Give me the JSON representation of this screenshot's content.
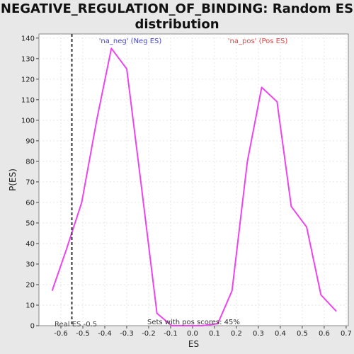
{
  "chart_data": {
    "type": "line",
    "title": "NEGATIVE_REGULATION_OF_BINDING: Random ES distribution",
    "xlabel": "ES",
    "ylabel": "P(ES)",
    "xlim": [
      -0.7,
      0.71
    ],
    "ylim": [
      0,
      142
    ],
    "x_ticks": [
      -0.6,
      -0.5,
      -0.4,
      -0.3,
      -0.2,
      -0.1,
      0.0,
      0.1,
      0.2,
      0.3,
      0.4,
      0.5,
      0.6,
      0.7
    ],
    "x_tick_labels": [
      "-0.6",
      "-0.5",
      "-0.4",
      "-0.3",
      "-0.2",
      "-0.1",
      "0.0",
      "0.1",
      "0.2",
      "0.3",
      "0.4",
      "0.5",
      "0.6",
      "0.7"
    ],
    "y_ticks": [
      0,
      10,
      20,
      30,
      40,
      50,
      60,
      70,
      80,
      90,
      100,
      110,
      120,
      130,
      140
    ],
    "y_tick_labels": [
      "0",
      "10",
      "20",
      "30",
      "40",
      "50",
      "60",
      "70",
      "80",
      "90",
      "100",
      "110",
      "120",
      "130",
      "140"
    ],
    "grid": true,
    "series": [
      {
        "color": "#ee44ee",
        "x": [
          -0.64,
          -0.575,
          -0.505,
          -0.435,
          -0.37,
          -0.3,
          -0.232,
          -0.162,
          -0.095,
          -0.025,
          0.045,
          0.115,
          0.18,
          0.25,
          0.315,
          0.385,
          0.45,
          0.52,
          0.585,
          0.655
        ],
        "y": [
          17,
          37,
          60,
          101,
          135,
          125,
          67,
          6,
          0,
          0,
          0,
          1,
          17,
          80,
          116,
          109,
          58,
          48,
          15,
          7
        ]
      }
    ],
    "real_es": -0.55,
    "annotations": {
      "neg_label": "'na_neg' (Neg ES)",
      "pos_label": "'na_pos' (Pos ES)",
      "real_es_label": "Real ES -0.5",
      "pos_scores_label": "Sets with pos scores: 45%"
    },
    "colors": {
      "neg_label": "#4444cc",
      "pos_label": "#dd4444",
      "real_es_line": "#333333"
    }
  }
}
